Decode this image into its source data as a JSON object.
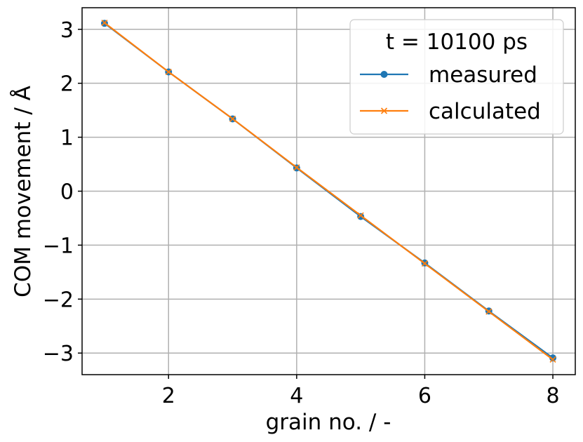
{
  "chart_data": {
    "type": "line",
    "xlabel": "grain no. / -",
    "ylabel": "COM movement / Å",
    "xlim": [
      0.65,
      8.35
    ],
    "ylim": [
      -3.4,
      3.4
    ],
    "x_ticks": [
      2,
      4,
      6,
      8
    ],
    "x_tick_labels": [
      "2",
      "4",
      "6",
      "8"
    ],
    "y_ticks": [
      3,
      2,
      1,
      0,
      -1,
      -2,
      -3
    ],
    "y_tick_labels": [
      "3",
      "2",
      "1",
      "0",
      "−1",
      "−2",
      "−3"
    ],
    "grid": true,
    "legend": {
      "title": "t = 10100 ps",
      "placement": "top-right"
    },
    "x": [
      1,
      2,
      3,
      4,
      5,
      6,
      7,
      8
    ],
    "series": [
      {
        "name": "measured",
        "color": "#1f77b4",
        "marker": "circle",
        "values": [
          3.11,
          2.21,
          1.34,
          0.43,
          -0.47,
          -1.33,
          -2.22,
          -3.09
        ]
      },
      {
        "name": "calculated",
        "color": "#ff7f0e",
        "marker": "x",
        "values": [
          3.12,
          2.21,
          1.34,
          0.44,
          -0.45,
          -1.34,
          -2.23,
          -3.12
        ]
      }
    ]
  }
}
